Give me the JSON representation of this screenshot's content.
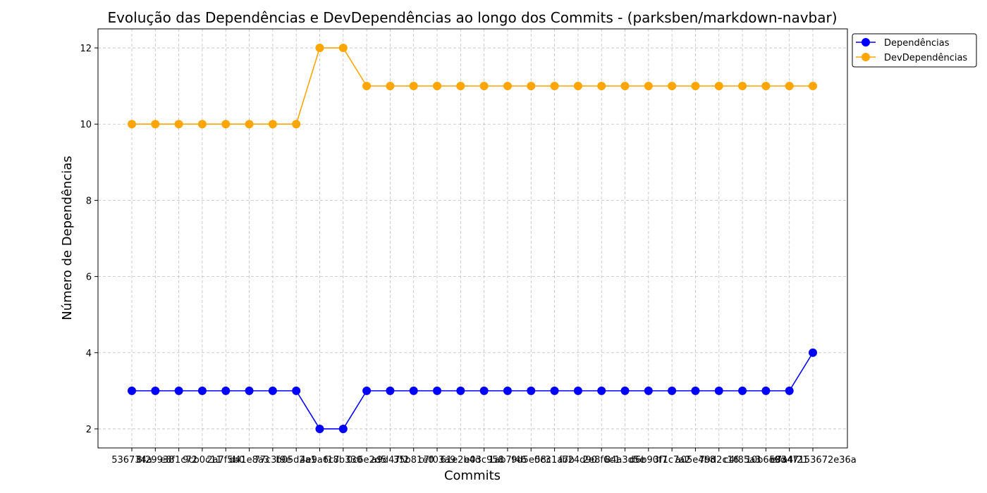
{
  "chart_data": {
    "type": "line",
    "title": "Evolução das Dependências e DevDependências ao longo dos Commits - (parksben/markdown-navbar)",
    "xlabel": "Commits",
    "ylabel": "Número de Dependências",
    "ylim": [
      1.5,
      12.5
    ],
    "yticks": [
      2,
      4,
      6,
      8,
      10,
      12
    ],
    "grid": true,
    "grid_style": "dashed",
    "legend_position": "upper-right-outside",
    "x_tick_labels_overlapping": true,
    "categories": [
      "536734a",
      "8f29938",
      "e8f1c72",
      "9cb0c11",
      "2a7f5b0",
      "d41e8a3",
      "77c3f9e",
      "b05d2a1",
      "4e9a6c7",
      "f18b330",
      "0c6e2d5",
      "a9d47f2",
      "35b81e0",
      "c7f03a9",
      "61e2b4d",
      "e03c958",
      "1ab7f46",
      "9d5e0c3",
      "58c1a7b",
      "fb24d90",
      "2e8f6c1",
      "84a3d5e",
      "d6b90f7",
      "3f1c7a2",
      "a05e4b8",
      "79d2c16",
      "c4f85a3",
      "10b6e9d",
      "e7a4f21",
      "58347153672e36a"
    ],
    "series": [
      {
        "name": "Dependências",
        "color": "#0000ff",
        "values": [
          3,
          3,
          3,
          3,
          3,
          3,
          3,
          3,
          2,
          2,
          3,
          3,
          3,
          3,
          3,
          3,
          3,
          3,
          3,
          3,
          3,
          3,
          3,
          3,
          3,
          3,
          3,
          3,
          3,
          4
        ]
      },
      {
        "name": "DevDependências",
        "color": "#ffa500",
        "values": [
          10,
          10,
          10,
          10,
          10,
          10,
          10,
          10,
          12,
          12,
          11,
          11,
          11,
          11,
          11,
          11,
          11,
          11,
          11,
          11,
          11,
          11,
          11,
          11,
          11,
          11,
          11,
          11,
          11,
          11
        ]
      }
    ]
  }
}
